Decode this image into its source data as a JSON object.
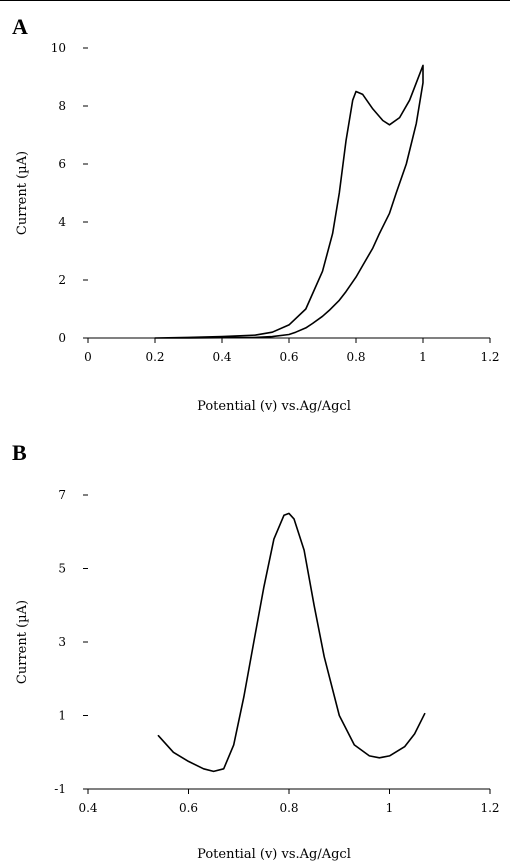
{
  "chart_data": [
    {
      "panel": "A",
      "type": "line",
      "xlabel": "Potential (v) vs.Ag/Agcl",
      "ylabel": "Current (µA)",
      "xlim": [
        0,
        1.2
      ],
      "ylim": [
        0,
        10
      ],
      "x_ticks": [
        "0",
        "0.2",
        "0.4",
        "0.6",
        "0.8",
        "1",
        "1.2"
      ],
      "y_ticks": [
        "0",
        "2",
        "4",
        "6",
        "8",
        "10"
      ],
      "grid": false,
      "series": [
        {
          "x": [
            0.2,
            0.3,
            0.4,
            0.5,
            0.55,
            0.6,
            0.65,
            0.7,
            0.73,
            0.75,
            0.77,
            0.79,
            0.8,
            0.82,
            0.85,
            0.88,
            0.9,
            0.93,
            0.96,
            0.98,
            1.0,
            1.0,
            0.98,
            0.95,
            0.92,
            0.9,
            0.87,
            0.85,
            0.82,
            0.8,
            0.77,
            0.75,
            0.72,
            0.7,
            0.67,
            0.65,
            0.62,
            0.6,
            0.55,
            0.5,
            0.4,
            0.3,
            0.2
          ],
          "y": [
            0.0,
            0.02,
            0.05,
            0.1,
            0.2,
            0.45,
            1.0,
            2.3,
            3.6,
            5.0,
            6.8,
            8.2,
            8.5,
            8.4,
            7.9,
            7.5,
            7.35,
            7.6,
            8.2,
            8.8,
            9.4,
            8.8,
            7.4,
            6.0,
            5.0,
            4.3,
            3.6,
            3.1,
            2.5,
            2.1,
            1.6,
            1.3,
            0.95,
            0.75,
            0.5,
            0.35,
            0.2,
            0.12,
            0.05,
            0.02,
            0.01,
            0.0,
            0.0
          ]
        }
      ]
    },
    {
      "panel": "B",
      "type": "line",
      "xlabel": "Potential (v) vs.Ag/Agcl",
      "ylabel": "Current (µA)",
      "xlim": [
        0.4,
        1.2
      ],
      "ylim": [
        -1,
        7
      ],
      "x_ticks": [
        "0.4",
        "0.6",
        "0.8",
        "1",
        "1.2"
      ],
      "y_ticks": [
        "-1",
        "1",
        "3",
        "5",
        "7"
      ],
      "grid": false,
      "series": [
        {
          "x": [
            0.54,
            0.57,
            0.6,
            0.63,
            0.65,
            0.67,
            0.69,
            0.71,
            0.73,
            0.75,
            0.77,
            0.79,
            0.8,
            0.81,
            0.83,
            0.85,
            0.87,
            0.9,
            0.93,
            0.96,
            0.98,
            1.0,
            1.03,
            1.05,
            1.07
          ],
          "y": [
            0.45,
            0.0,
            -0.25,
            -0.45,
            -0.52,
            -0.45,
            0.2,
            1.5,
            3.0,
            4.5,
            5.8,
            6.45,
            6.5,
            6.35,
            5.5,
            4.0,
            2.6,
            1.0,
            0.2,
            -0.1,
            -0.15,
            -0.1,
            0.15,
            0.5,
            1.05
          ]
        }
      ]
    }
  ]
}
